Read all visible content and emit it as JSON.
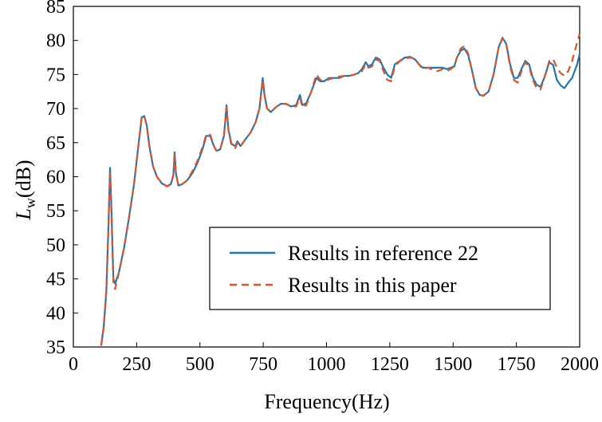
{
  "chart_data": {
    "type": "line",
    "title": "",
    "xlabel": "Frequency(Hz)",
    "ylabel_main": "L",
    "ylabel_sub": "w",
    "ylabel_unit": "(dB)",
    "xlim": [
      0,
      2000
    ],
    "ylim": [
      35,
      85
    ],
    "xticks": [
      0,
      250,
      500,
      750,
      1000,
      1250,
      1500,
      1750,
      2000
    ],
    "yticks": [
      35,
      40,
      45,
      50,
      55,
      60,
      65,
      70,
      75,
      80,
      85
    ],
    "grid": false,
    "legend_position": "lower-right",
    "series": [
      {
        "name": "Results in reference 22",
        "color": "#1f77b4",
        "dash": "solid",
        "points": [
          [
            110,
            35.2
          ],
          [
            120,
            38
          ],
          [
            130,
            43
          ],
          [
            138,
            52
          ],
          [
            145,
            61.3
          ],
          [
            150,
            56
          ],
          [
            158,
            45
          ],
          [
            165,
            44.3
          ],
          [
            180,
            46
          ],
          [
            200,
            49.5
          ],
          [
            220,
            54
          ],
          [
            240,
            59
          ],
          [
            255,
            64
          ],
          [
            270,
            68.7
          ],
          [
            280,
            68.9
          ],
          [
            290,
            67.5
          ],
          [
            300,
            64.5
          ],
          [
            315,
            61.5
          ],
          [
            330,
            60
          ],
          [
            350,
            59
          ],
          [
            370,
            58.6
          ],
          [
            385,
            58.9
          ],
          [
            395,
            60.2
          ],
          [
            400,
            63.6
          ],
          [
            405,
            60.5
          ],
          [
            415,
            58.7
          ],
          [
            430,
            58.9
          ],
          [
            450,
            59.5
          ],
          [
            470,
            60.5
          ],
          [
            490,
            62
          ],
          [
            510,
            64
          ],
          [
            525,
            66
          ],
          [
            540,
            66
          ],
          [
            555,
            64.5
          ],
          [
            565,
            63.8
          ],
          [
            580,
            64
          ],
          [
            595,
            66
          ],
          [
            605,
            70.5
          ],
          [
            612,
            67
          ],
          [
            625,
            64.8
          ],
          [
            640,
            64.5
          ],
          [
            648,
            65.2
          ],
          [
            660,
            64.5
          ],
          [
            680,
            65.5
          ],
          [
            700,
            66.5
          ],
          [
            720,
            68
          ],
          [
            735,
            70
          ],
          [
            748,
            74.5
          ],
          [
            755,
            72
          ],
          [
            765,
            70
          ],
          [
            780,
            69.5
          ],
          [
            800,
            70.2
          ],
          [
            820,
            70.7
          ],
          [
            840,
            70.7
          ],
          [
            860,
            70.3
          ],
          [
            880,
            70.5
          ],
          [
            895,
            72
          ],
          [
            905,
            70.5
          ],
          [
            920,
            70.8
          ],
          [
            940,
            72.5
          ],
          [
            960,
            74.5
          ],
          [
            975,
            74
          ],
          [
            990,
            74
          ],
          [
            1010,
            74.5
          ],
          [
            1030,
            74.5
          ],
          [
            1050,
            74.5
          ],
          [
            1070,
            74.8
          ],
          [
            1090,
            74.8
          ],
          [
            1110,
            75
          ],
          [
            1125,
            75.2
          ],
          [
            1140,
            75.8
          ],
          [
            1155,
            76.8
          ],
          [
            1165,
            76.2
          ],
          [
            1180,
            76.5
          ],
          [
            1195,
            77.5
          ],
          [
            1210,
            77.2
          ],
          [
            1225,
            76
          ],
          [
            1240,
            75
          ],
          [
            1255,
            74.5
          ],
          [
            1270,
            76.5
          ],
          [
            1290,
            77
          ],
          [
            1310,
            77.5
          ],
          [
            1330,
            77.6
          ],
          [
            1350,
            77.2
          ],
          [
            1365,
            76.5
          ],
          [
            1380,
            76
          ],
          [
            1400,
            76
          ],
          [
            1420,
            76
          ],
          [
            1440,
            76
          ],
          [
            1460,
            76
          ],
          [
            1475,
            75.8
          ],
          [
            1490,
            76
          ],
          [
            1505,
            76.2
          ],
          [
            1515,
            77.5
          ],
          [
            1530,
            78.5
          ],
          [
            1545,
            78.8
          ],
          [
            1560,
            77.8
          ],
          [
            1575,
            75.5
          ],
          [
            1590,
            73
          ],
          [
            1605,
            72
          ],
          [
            1620,
            71.9
          ],
          [
            1640,
            72.5
          ],
          [
            1660,
            75
          ],
          [
            1680,
            79
          ],
          [
            1695,
            80.4
          ],
          [
            1710,
            79.5
          ],
          [
            1725,
            76.5
          ],
          [
            1740,
            74.5
          ],
          [
            1755,
            74.5
          ],
          [
            1770,
            75.8
          ],
          [
            1785,
            77
          ],
          [
            1800,
            76.5
          ],
          [
            1815,
            74.5
          ],
          [
            1830,
            73.5
          ],
          [
            1845,
            73.2
          ],
          [
            1860,
            74.5
          ],
          [
            1880,
            76.8
          ],
          [
            1895,
            76.4
          ],
          [
            1910,
            74.2
          ],
          [
            1925,
            73.4
          ],
          [
            1940,
            73
          ],
          [
            1955,
            73.8
          ],
          [
            1970,
            74.5
          ],
          [
            1990,
            76.5
          ],
          [
            2000,
            78
          ]
        ]
      },
      {
        "name": "Results in this paper",
        "color": "#d9542b",
        "dash": "dashed",
        "points": [
          [
            110,
            35.2
          ],
          [
            120,
            38
          ],
          [
            130,
            43.2
          ],
          [
            138,
            52
          ],
          [
            145,
            60.5
          ],
          [
            150,
            55
          ],
          [
            158,
            44.5
          ],
          [
            165,
            43.5
          ],
          [
            180,
            46
          ],
          [
            200,
            49.5
          ],
          [
            220,
            54
          ],
          [
            240,
            59
          ],
          [
            255,
            64
          ],
          [
            270,
            68.7
          ],
          [
            280,
            68.9
          ],
          [
            290,
            67.5
          ],
          [
            300,
            64.5
          ],
          [
            315,
            61.5
          ],
          [
            330,
            60
          ],
          [
            350,
            59
          ],
          [
            370,
            58.6
          ],
          [
            385,
            58.9
          ],
          [
            395,
            60.2
          ],
          [
            400,
            63.2
          ],
          [
            405,
            60.5
          ],
          [
            415,
            58.7
          ],
          [
            430,
            58.9
          ],
          [
            450,
            59.5
          ],
          [
            470,
            60.8
          ],
          [
            490,
            62.3
          ],
          [
            510,
            64.3
          ],
          [
            525,
            66.2
          ],
          [
            540,
            66.2
          ],
          [
            555,
            64.5
          ],
          [
            565,
            63.8
          ],
          [
            580,
            64
          ],
          [
            595,
            66
          ],
          [
            605,
            70.2
          ],
          [
            612,
            67
          ],
          [
            625,
            64.5
          ],
          [
            640,
            64.2
          ],
          [
            648,
            65
          ],
          [
            660,
            64.5
          ],
          [
            680,
            65.5
          ],
          [
            700,
            66.5
          ],
          [
            720,
            68
          ],
          [
            735,
            70
          ],
          [
            748,
            74.2
          ],
          [
            755,
            72
          ],
          [
            765,
            70
          ],
          [
            780,
            69.5
          ],
          [
            800,
            70.2
          ],
          [
            820,
            70.7
          ],
          [
            840,
            70.7
          ],
          [
            860,
            70.3
          ],
          [
            880,
            70.3
          ],
          [
            895,
            71.6
          ],
          [
            905,
            70.2
          ],
          [
            920,
            70.5
          ],
          [
            940,
            72.5
          ],
          [
            960,
            75
          ],
          [
            975,
            74.2
          ],
          [
            990,
            74
          ],
          [
            1010,
            74.3
          ],
          [
            1030,
            74.5
          ],
          [
            1050,
            74.7
          ],
          [
            1070,
            74.8
          ],
          [
            1090,
            74.8
          ],
          [
            1110,
            75
          ],
          [
            1125,
            75.2
          ],
          [
            1140,
            75.5
          ],
          [
            1155,
            76.5
          ],
          [
            1165,
            76
          ],
          [
            1180,
            76.2
          ],
          [
            1195,
            77.2
          ],
          [
            1210,
            77
          ],
          [
            1225,
            75.5
          ],
          [
            1240,
            74.2
          ],
          [
            1255,
            74
          ],
          [
            1270,
            76.2
          ],
          [
            1290,
            77
          ],
          [
            1310,
            77.3
          ],
          [
            1330,
            77.5
          ],
          [
            1350,
            77.3
          ],
          [
            1365,
            76.5
          ],
          [
            1380,
            75.8
          ],
          [
            1400,
            76
          ],
          [
            1420,
            75.7
          ],
          [
            1440,
            75.5
          ],
          [
            1460,
            75.8
          ],
          [
            1475,
            75.5
          ],
          [
            1490,
            75.8
          ],
          [
            1505,
            76.2
          ],
          [
            1515,
            77.5
          ],
          [
            1530,
            78.8
          ],
          [
            1545,
            79.2
          ],
          [
            1560,
            78
          ],
          [
            1575,
            75.5
          ],
          [
            1590,
            73
          ],
          [
            1605,
            72
          ],
          [
            1620,
            71.9
          ],
          [
            1640,
            72.5
          ],
          [
            1660,
            75
          ],
          [
            1680,
            79
          ],
          [
            1695,
            80.3
          ],
          [
            1710,
            79.5
          ],
          [
            1725,
            76.2
          ],
          [
            1740,
            74.2
          ],
          [
            1755,
            73.8
          ],
          [
            1770,
            75.5
          ],
          [
            1785,
            76.8
          ],
          [
            1800,
            76.2
          ],
          [
            1815,
            74.2
          ],
          [
            1830,
            73
          ],
          [
            1845,
            72.8
          ],
          [
            1860,
            74.5
          ],
          [
            1880,
            77
          ],
          [
            1895,
            77.3
          ],
          [
            1910,
            76
          ],
          [
            1925,
            75.2
          ],
          [
            1940,
            74.8
          ],
          [
            1955,
            75.5
          ],
          [
            1970,
            77
          ],
          [
            1985,
            79
          ],
          [
            2000,
            81
          ]
        ]
      }
    ]
  }
}
